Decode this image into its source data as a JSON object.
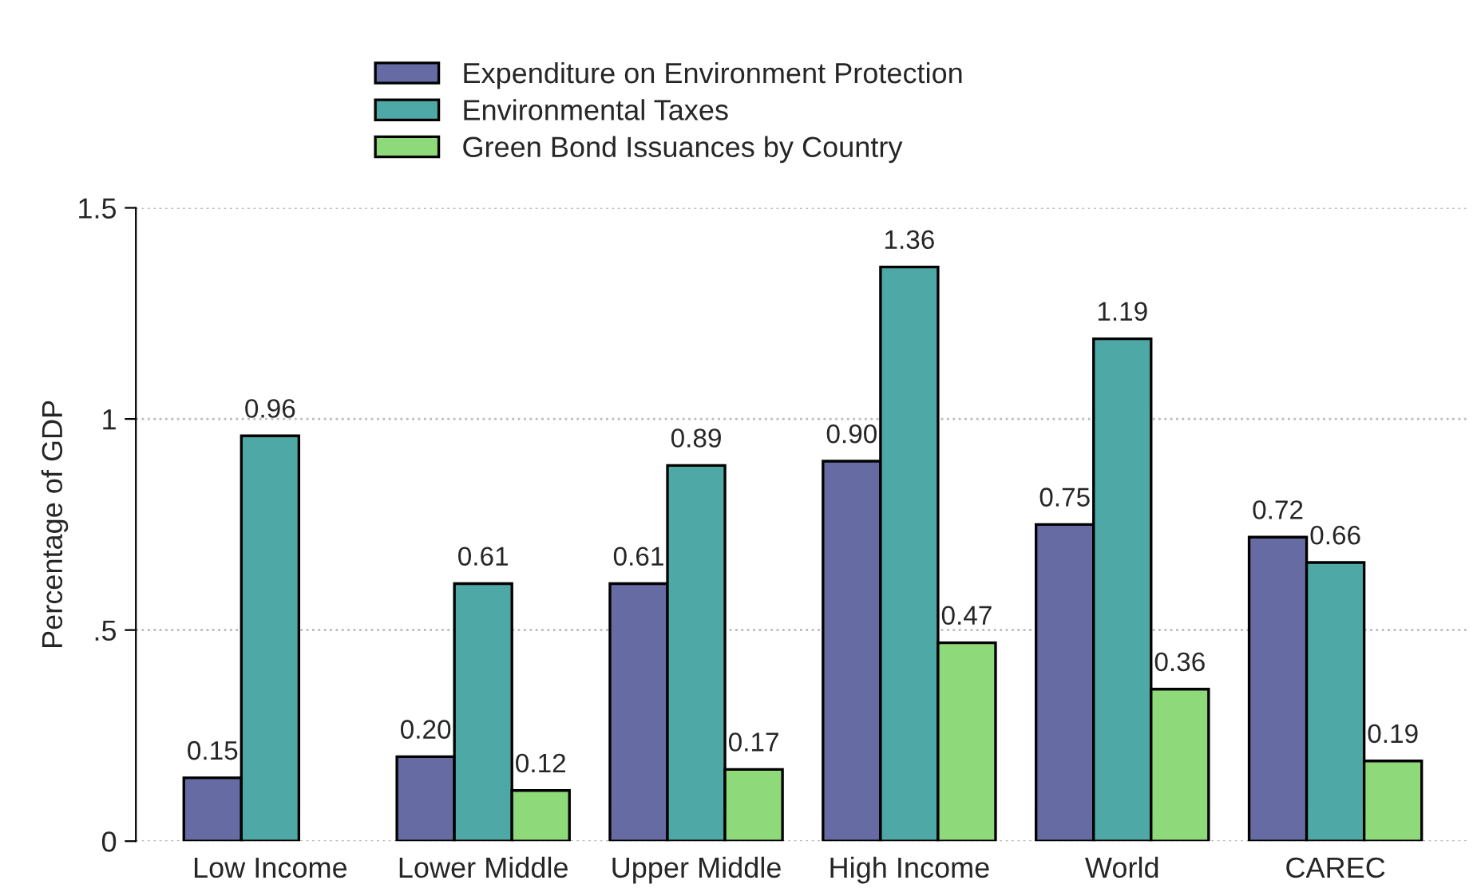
{
  "chart_data": {
    "type": "bar",
    "ylabel": "Percentage of GDP",
    "categories": [
      "Low Income",
      "Lower Middle",
      "Upper Middle",
      "High Income",
      "World",
      "CAREC"
    ],
    "series": [
      {
        "name": "Expenditure on Environment Protection",
        "color": "#676ba3",
        "values": [
          0.15,
          0.2,
          0.61,
          0.9,
          0.75,
          0.72
        ],
        "value_labels": [
          "0.15",
          "0.20",
          "0.61",
          "0.90",
          "0.75",
          "0.72"
        ]
      },
      {
        "name": "Environmental Taxes",
        "color": "#4ea8a5",
        "values": [
          0.96,
          0.61,
          0.89,
          1.36,
          1.19,
          0.66
        ],
        "value_labels": [
          "0.96",
          "0.61",
          "0.89",
          "1.36",
          "1.19",
          "0.66"
        ]
      },
      {
        "name": "Green Bond Issuances by Country",
        "color": "#8ed97a",
        "values": [
          null,
          0.12,
          0.17,
          0.47,
          0.36,
          0.19
        ],
        "value_labels": [
          null,
          "0.12",
          "0.17",
          "0.47",
          "0.36",
          "0.19"
        ]
      }
    ],
    "ylim": [
      0,
      1.5
    ],
    "yticks": [
      0,
      {
        "value": 0.5,
        "label": ".5"
      },
      1,
      1.5
    ],
    "grid": "y",
    "legend": "top"
  }
}
